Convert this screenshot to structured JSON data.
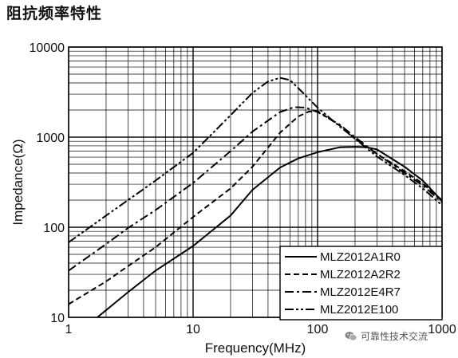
{
  "page": {
    "title": "阻抗频率特性"
  },
  "watermark": {
    "text": "可靠性技术交流",
    "icon": "wechat-icon"
  },
  "chart_data": {
    "type": "line",
    "title": "阻抗频率特性",
    "xlabel": "Frequency(MHz)",
    "ylabel": "Impedance(Ω)",
    "xscale": "log",
    "yscale": "log",
    "xlim": [
      1,
      1000
    ],
    "ylim": [
      10,
      10000
    ],
    "x_ticks": [
      "1",
      "10",
      "100",
      "1000"
    ],
    "y_ticks": [
      "10",
      "100",
      "1000",
      "10000"
    ],
    "grid": true,
    "legend_position": "bottom-right",
    "series": [
      {
        "name": "MLZ2012A1R0",
        "style": "solid",
        "x": [
          1.7,
          3,
          5,
          10,
          20,
          30,
          50,
          70,
          100,
          150,
          200,
          250,
          300,
          500,
          700,
          1000
        ],
        "y": [
          10,
          19,
          33,
          62,
          135,
          260,
          460,
          580,
          680,
          770,
          780,
          770,
          730,
          470,
          330,
          195
        ]
      },
      {
        "name": "MLZ2012A2R2",
        "style": "dashed",
        "x": [
          1,
          2,
          3,
          5,
          10,
          20,
          30,
          50,
          70,
          85,
          100,
          150,
          200,
          300,
          500,
          700,
          1000
        ],
        "y": [
          14,
          25,
          37,
          60,
          130,
          270,
          470,
          1120,
          1700,
          1920,
          1950,
          1350,
          960,
          650,
          420,
          305,
          200
        ]
      },
      {
        "name": "MLZ2012E4R7",
        "style": "dashdot",
        "x": [
          1,
          2,
          3,
          5,
          10,
          20,
          30,
          50,
          65,
          80,
          100,
          150,
          200,
          300,
          500,
          700,
          1000
        ],
        "y": [
          33,
          65,
          98,
          155,
          310,
          700,
          1150,
          1900,
          2150,
          2130,
          1900,
          1380,
          1000,
          650,
          400,
          290,
          190
        ]
      },
      {
        "name": "MLZ2012E100",
        "style": "dashdotdot",
        "x": [
          1,
          2,
          3,
          5,
          10,
          20,
          30,
          40,
          50,
          60,
          70,
          100,
          150,
          200,
          300,
          500,
          700,
          1000
        ],
        "y": [
          68,
          135,
          200,
          330,
          670,
          1750,
          3100,
          4150,
          4550,
          4300,
          3500,
          2130,
          1320,
          960,
          610,
          380,
          270,
          175
        ]
      }
    ]
  }
}
